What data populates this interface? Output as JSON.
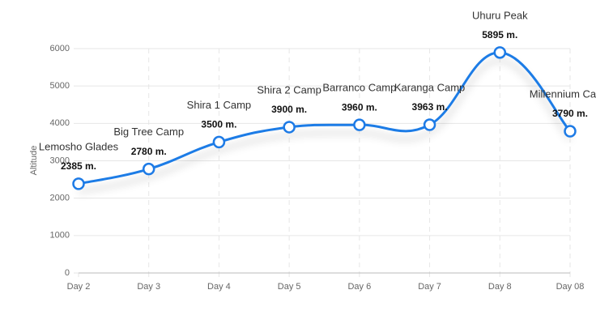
{
  "chart_data": {
    "type": "line",
    "y_label": "Altitude",
    "categories": [
      "Day 2",
      "Day 3",
      "Day 4",
      "Day 5",
      "Day 6",
      "Day 7",
      "Day 8",
      "Day 08"
    ],
    "point_labels": [
      "Lemosho Glades",
      "Big Tree Camp",
      "Shira 1 Camp",
      "Shira 2 Camp",
      "Barranco Camp",
      "Karanga Camp",
      "Uhuru Peak",
      "Millennium Camp"
    ],
    "series": [
      {
        "name": "Altitude",
        "color": "#1e7be6",
        "values": [
          2385,
          2780,
          3500,
          3900,
          3960,
          3963,
          5895,
          3790
        ],
        "value_labels": [
          "2385 m.",
          "2780 m.",
          "3500 m.",
          "3900 m.",
          "3960 m.",
          "3963 m.",
          "5895 m.",
          "3790 m."
        ]
      }
    ],
    "ylim": [
      0,
      6000
    ],
    "yticks": [
      0,
      1000,
      2000,
      3000,
      4000,
      5000,
      6000
    ],
    "grid": true
  }
}
